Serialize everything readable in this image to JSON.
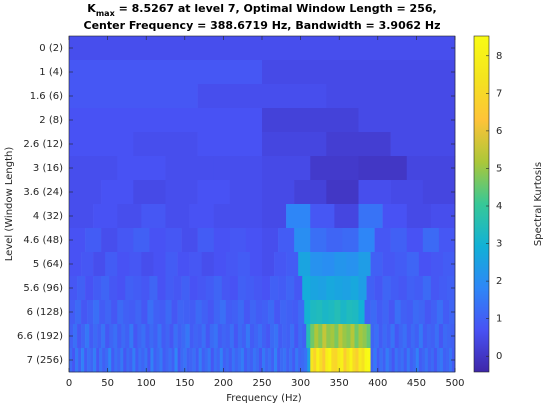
{
  "chart_data": {
    "type": "heatmap",
    "title": {
      "symbol": "K",
      "subscript": "max",
      "line1": " = 8.5267 at level 7, Optimal Window Length = 256,",
      "line2": "Center Frequency = 388.6719 Hz, Bandwidth = 3.9062 Hz"
    },
    "xlabel": "Frequency (Hz)",
    "ylabel": "Level (Window Length)",
    "xlim": [
      0,
      500
    ],
    "xticks": [
      0,
      50,
      100,
      150,
      200,
      250,
      300,
      350,
      400,
      450,
      500
    ],
    "categories": [
      "0  (2)",
      "1  (4)",
      "1.6  (6)",
      "2  (8)",
      "2.6  (12)",
      "3  (16)",
      "3.6  (24)",
      "4  (32)",
      "4.6  (48)",
      "5  (64)",
      "5.6  (96)",
      "6  (128)",
      "6.6 (192)",
      "7 (256)"
    ],
    "values": [
      [
        0.6
      ],
      [
        0.8,
        0.5
      ],
      [
        0.8,
        0.6,
        0.5
      ],
      [
        0.7,
        0.7,
        0.3,
        0.5
      ],
      [
        0.7,
        0.6,
        0.7,
        0.4,
        0.2,
        0.5
      ],
      [
        0.6,
        0.7,
        0.6,
        0.6,
        0.5,
        0.1,
        0.0,
        0.4
      ],
      [
        0.6,
        0.7,
        0.5,
        0.6,
        0.7,
        0.6,
        0.5,
        0.3,
        0.0,
        0.6,
        0.5,
        0.4
      ],
      [
        0.6,
        0.7,
        0.6,
        0.8,
        0.6,
        0.7,
        0.6,
        0.6,
        0.5,
        1.8,
        0.8,
        0.4,
        1.4,
        0.7,
        0.5,
        0.6
      ],
      [
        0.7,
        0.9,
        0.6,
        0.8,
        1.0,
        0.7,
        0.8,
        0.6,
        0.9,
        0.7,
        0.8,
        0.7,
        0.6,
        0.9,
        2.0,
        1.3,
        1.1,
        1.2,
        1.8,
        0.8,
        1.0,
        0.7,
        1.2,
        0.8
      ],
      [
        0.7,
        0.8,
        0.6,
        0.9,
        0.7,
        0.8,
        0.6,
        0.7,
        0.9,
        0.7,
        0.8,
        0.6,
        0.7,
        0.8,
        0.9,
        0.7,
        0.6,
        0.8,
        0.9,
        2.6,
        2.1,
        2.0,
        2.2,
        2.1,
        2.4,
        1.0,
        0.8,
        0.9,
        1.1,
        0.7,
        0.8,
        0.9
      ],
      [
        0.8,
        1.0,
        0.7,
        0.9,
        1.1,
        0.8,
        0.7,
        1.0,
        0.9,
        0.8,
        1.1,
        0.7,
        0.9,
        0.8,
        1.0,
        0.7,
        0.8,
        0.9,
        1.1,
        0.8,
        0.7,
        1.0,
        0.9,
        0.8,
        0.7,
        1.0,
        0.9,
        1.1,
        0.8,
        2.8,
        2.6,
        2.5,
        2.7,
        2.6,
        2.5,
        2.7,
        2.4,
        1.0,
        0.8,
        1.1,
        0.9,
        0.8,
        1.0,
        0.9,
        1.2,
        0.8,
        0.9,
        1.0
      ],
      [
        0.9,
        1.2,
        0.8,
        1.0,
        1.3,
        0.9,
        1.1,
        0.8,
        1.2,
        1.0,
        0.9,
        1.1,
        0.8,
        1.3,
        1.0,
        0.9,
        1.2,
        0.8,
        1.1,
        1.0,
        0.9,
        1.2,
        1.0,
        0.8,
        1.1,
        1.3,
        0.9,
        1.0,
        1.2,
        0.8,
        1.1,
        0.9,
        1.0,
        1.2,
        0.8,
        1.1,
        1.0,
        0.9,
        1.2,
        3.0,
        3.3,
        3.4,
        3.2,
        3.3,
        3.5,
        3.2,
        3.4,
        3.3,
        2.9,
        1.0,
        1.2,
        0.9,
        1.1,
        0.8,
        1.3,
        1.0,
        0.9,
        1.2,
        1.1,
        0.8,
        1.0,
        1.3,
        0.9,
        1.1
      ],
      [
        1.0,
        1.3,
        0.8,
        1.1,
        1.5,
        0.9,
        1.2,
        1.0,
        1.4,
        0.8,
        1.1,
        1.3,
        0.9,
        1.2,
        1.0,
        1.5,
        0.8,
        1.1,
        1.3,
        0.9,
        1.2,
        1.0,
        1.4,
        0.9,
        1.1,
        0.8,
        1.3,
        1.0,
        1.2,
        1.5,
        0.9,
        1.1,
        1.0,
        1.3,
        0.8,
        1.2,
        1.4,
        0.9,
        1.1,
        1.0,
        1.3,
        0.8,
        1.2,
        1.0,
        1.5,
        0.9,
        1.1,
        1.3,
        1.0,
        0.8,
        1.2,
        1.4,
        0.9,
        1.1,
        1.0,
        1.3,
        0.8,
        1.2,
        1.0,
        3.5,
        4.6,
        5.2,
        4.8,
        5.5,
        4.9,
        5.1,
        4.7,
        5.4,
        5.0,
        4.8,
        5.3,
        4.6,
        5.1,
        4.9,
        4.5,
        1.1,
        1.3,
        0.9,
        1.2,
        1.0,
        1.4,
        0.8,
        1.1,
        1.3,
        0.9,
        1.2,
        1.0,
        1.5,
        0.9,
        1.1,
        1.0,
        1.3,
        0.8,
        1.2,
        1.1,
        1.0
      ],
      [
        1.2,
        0.8,
        1.5,
        1.0,
        1.7,
        0.9,
        1.3,
        1.1,
        1.6,
        0.8,
        1.4,
        1.0,
        1.2,
        1.8,
        0.9,
        1.3,
        1.1,
        1.5,
        0.8,
        1.2,
        1.0,
        1.6,
        0.9,
        1.3,
        1.1,
        1.4,
        0.8,
        1.7,
        1.0,
        1.2,
        1.5,
        0.9,
        1.1,
        1.3,
        1.0,
        1.8,
        0.8,
        1.2,
        1.4,
        1.0,
        1.1,
        1.3,
        0.9,
        1.6,
        1.0,
        1.2,
        1.5,
        0.8,
        1.3,
        1.1,
        1.7,
        1.0,
        1.2,
        0.9,
        1.4,
        1.1,
        1.3,
        1.6,
        0.9,
        1.2,
        1.0,
        1.4,
        1.2,
        0.8,
        1.5,
        1.1,
        1.3,
        1.0,
        1.7,
        0.9,
        1.2,
        1.4,
        1.0,
        1.3,
        0.9,
        1.5,
        1.1,
        1.2,
        1.4,
        2.5,
        7.5,
        6.8,
        8.1,
        7.2,
        6.5,
        7.9,
        8.3,
        7.0,
        6.9,
        7.7,
        8.0,
        6.6,
        7.4,
        8.2,
        7.1,
        6.7,
        7.8,
        7.3,
        8.4,
        8.5267,
        1.1,
        1.5,
        0.9,
        1.3,
        1.0,
        1.6,
        1.2,
        0.8,
        1.4,
        1.1,
        1.3,
        0.9,
        1.5,
        1.0,
        1.2,
        1.7,
        0.9,
        1.1,
        1.4,
        1.0,
        1.2,
        0.8,
        1.3,
        1.5,
        1.0,
        1.1,
        1.4,
        0.9
      ]
    ],
    "colormap": "parula",
    "colorbar": {
      "label": "Spectral Kurtosis",
      "clim": [
        -0.42,
        8.5267
      ],
      "ticks": [
        0,
        1,
        2,
        3,
        4,
        5,
        6,
        7,
        8
      ]
    }
  }
}
